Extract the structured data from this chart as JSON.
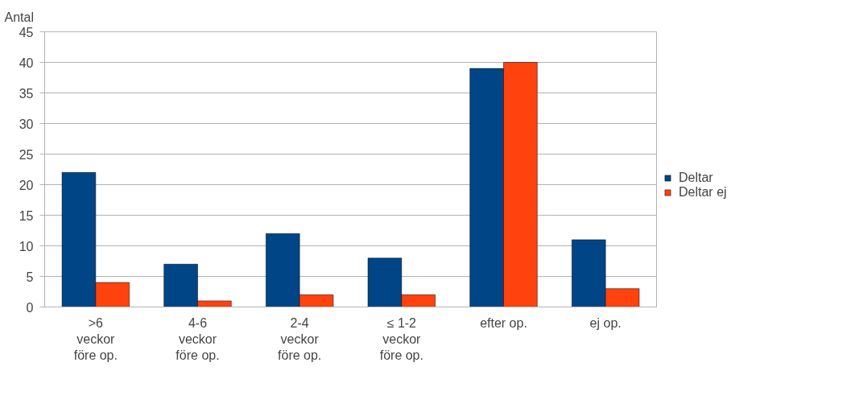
{
  "chart_data": {
    "type": "bar",
    "ylabel": "Antal",
    "categories": [
      ">6\nveckor\nföre op.",
      "4-6\nveckor\nföre op.",
      "2-4\nveckor\nföre op.",
      "≤ 1-2\nveckor\nföre op.",
      "efter op.",
      "ej op."
    ],
    "series": [
      {
        "name": "Deltar",
        "color": "#004586",
        "values": [
          22,
          7,
          12,
          8,
          39,
          11
        ]
      },
      {
        "name": "Deltar ej",
        "color": "#ff420e",
        "values": [
          4,
          1,
          2,
          2,
          40,
          3
        ]
      }
    ],
    "ylim": [
      0,
      45
    ],
    "yticks": [
      0,
      5,
      10,
      15,
      20,
      25,
      30,
      35,
      40,
      45
    ],
    "grid": "y",
    "legend": "right"
  }
}
